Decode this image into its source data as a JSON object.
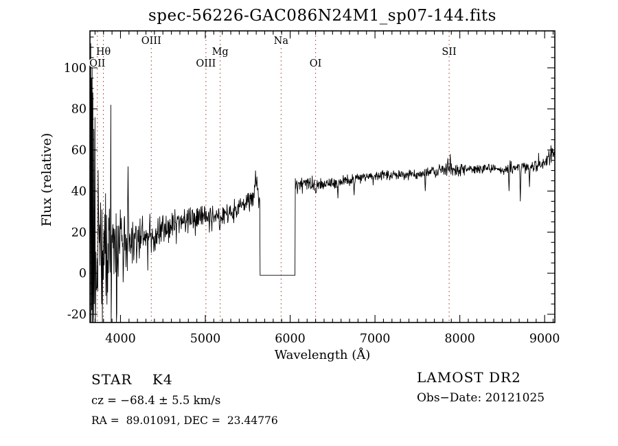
{
  "chart_data": {
    "type": "line",
    "title": "spec-56226-GAC086N24M1_sp07-144.fits",
    "xlabel": "Wavelength (Å)",
    "ylabel": "Flux (relative)",
    "xlim": [
      3640,
      9120
    ],
    "ylim": [
      -24,
      118
    ],
    "x_ticks": [
      4000,
      5000,
      6000,
      7000,
      8000,
      9000
    ],
    "x_minor_step": 100,
    "y_ticks": [
      -20,
      0,
      20,
      40,
      60,
      80,
      100
    ],
    "y_minor_step": 5,
    "grid": false,
    "legend_position": "none",
    "trace_color": "#000000",
    "frame_color": "#000000",
    "line_marker_color": "#a32c2c",
    "spectral_lines": [
      {
        "label": "OII",
        "wavelength": 3727,
        "row": "bottom"
      },
      {
        "label": "Hθ",
        "wavelength": 3798,
        "row": "middle"
      },
      {
        "label": "OIII",
        "wavelength": 4363,
        "row": "top"
      },
      {
        "label": "OIII",
        "wavelength": 5007,
        "row": "bottom"
      },
      {
        "label": "Mg",
        "wavelength": 5175,
        "row": "middle"
      },
      {
        "label": "Na",
        "wavelength": 5893,
        "row": "top"
      },
      {
        "label": "OI",
        "wavelength": 6300,
        "row": "bottom"
      },
      {
        "label": "SII",
        "wavelength": 7874,
        "row": "middle"
      }
    ],
    "ccd_gap": {
      "start": 5642,
      "end": 6058,
      "flux": -1
    },
    "continuum_anchors": [
      [
        3642,
        35,
        70
      ],
      [
        3665,
        25,
        60
      ],
      [
        3690,
        18,
        48
      ],
      [
        3720,
        14,
        38
      ],
      [
        3760,
        13,
        30
      ],
      [
        3800,
        14,
        25
      ],
      [
        3850,
        14,
        20
      ],
      [
        3900,
        14,
        18
      ],
      [
        3950,
        12,
        22
      ],
      [
        4000,
        14,
        16
      ],
      [
        4050,
        15,
        13
      ],
      [
        4100,
        16,
        11
      ],
      [
        4200,
        17,
        9
      ],
      [
        4300,
        17,
        8
      ],
      [
        4400,
        19,
        7
      ],
      [
        4500,
        21,
        6
      ],
      [
        4600,
        23,
        5.5
      ],
      [
        4700,
        25,
        5
      ],
      [
        4800,
        26,
        4.5
      ],
      [
        4900,
        27,
        4.5
      ],
      [
        5000,
        28.5,
        4.5
      ],
      [
        5100,
        28,
        4
      ],
      [
        5175,
        26.5,
        4
      ],
      [
        5250,
        29,
        4
      ],
      [
        5350,
        31,
        4
      ],
      [
        5450,
        33,
        4
      ],
      [
        5550,
        37,
        4.5
      ],
      [
        5600,
        40,
        5
      ],
      [
        5635,
        38,
        3
      ],
      [
        6062,
        44.5,
        2.5
      ],
      [
        6150,
        44,
        2.5
      ],
      [
        6250,
        43.5,
        2.3
      ],
      [
        6300,
        42.5,
        2.3
      ],
      [
        6400,
        44,
        2.2
      ],
      [
        6563,
        44,
        2.4
      ],
      [
        6700,
        46,
        2
      ],
      [
        6900,
        47,
        2
      ],
      [
        7100,
        47.5,
        2
      ],
      [
        7300,
        48,
        2
      ],
      [
        7500,
        48.5,
        2
      ],
      [
        7700,
        49.5,
        2.2
      ],
      [
        7874,
        51,
        3
      ],
      [
        7950,
        50.5,
        2.4
      ],
      [
        8100,
        50.5,
        2
      ],
      [
        8300,
        51,
        2
      ],
      [
        8500,
        51,
        2.2
      ],
      [
        8700,
        51.5,
        2.5
      ],
      [
        8900,
        52.5,
        2.8
      ],
      [
        9000,
        54,
        3
      ],
      [
        9050,
        56,
        3.5
      ],
      [
        9120,
        59,
        3.5
      ]
    ],
    "absorption_dips": [
      [
        5170,
        21
      ],
      [
        6300,
        39
      ],
      [
        6563,
        36.5
      ],
      [
        6755,
        38
      ],
      [
        7594,
        40
      ],
      [
        8582,
        40
      ],
      [
        8712,
        35
      ],
      [
        8820,
        42
      ]
    ],
    "emission_spikes": [
      [
        4090,
        52
      ],
      [
        5590,
        50
      ],
      [
        5607,
        47
      ],
      [
        7858,
        56
      ],
      [
        7886,
        58
      ],
      [
        9088,
        61
      ]
    ],
    "edge_noise_spikes": [
      [
        3648,
        112,
        -24
      ],
      [
        3656,
        95,
        -18
      ],
      [
        3665,
        102,
        -24
      ],
      [
        3676,
        88,
        -24
      ],
      [
        3688,
        70,
        -15
      ],
      [
        3700,
        76,
        -24
      ],
      [
        3885,
        82,
        -24
      ]
    ],
    "noise_seed": 12
  },
  "footer": {
    "left": [
      {
        "text": "STAR    K4"
      },
      {
        "text": "cz = −68.4 ± 5.5 km/s"
      },
      {
        "text": "RA =  89.01091, DEC =  23.44776"
      }
    ],
    "right": [
      {
        "text": "LAMOST DR2"
      },
      {
        "text": "Obs−Date: 20121025"
      }
    ]
  }
}
